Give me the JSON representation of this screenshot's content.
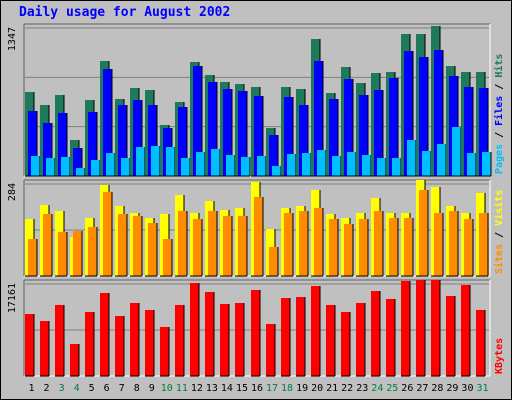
{
  "title": "Daily usage for August 2002",
  "colors": {
    "background": "#c0c0c0",
    "title": "#0000ff",
    "hits": "#1e7a5a",
    "files": "#0000ff",
    "pages": "#00bfff",
    "visits": "#ffff00",
    "sites": "#ff8c00",
    "kbytes": "#ff0000",
    "weekday_label": "#000000",
    "weekend_label": "#007f3f"
  },
  "chart_data": [
    {
      "type": "bar",
      "panel": "hits-files-pages",
      "y_max_label": "1347",
      "legend": [
        {
          "text": "Pages",
          "color": "#00bfff"
        },
        {
          "text": " / ",
          "color": "#000000"
        },
        {
          "text": "Files",
          "color": "#0000ff"
        },
        {
          "text": " / ",
          "color": "#000000"
        },
        {
          "text": "Hits",
          "color": "#1e7a5a"
        }
      ],
      "categories": [
        "1",
        "2",
        "3",
        "4",
        "5",
        "6",
        "7",
        "8",
        "9",
        "10",
        "11",
        "12",
        "13",
        "14",
        "15",
        "16",
        "17",
        "18",
        "19",
        "20",
        "21",
        "22",
        "23",
        "24",
        "25",
        "26",
        "27",
        "28",
        "29",
        "30",
        "31"
      ],
      "ylim": [
        0,
        1347
      ],
      "series": [
        {
          "name": "Hits",
          "values": [
            760,
            645,
            735,
            330,
            690,
            1050,
            705,
            800,
            780,
            465,
            675,
            1040,
            920,
            860,
            835,
            810,
            440,
            810,
            795,
            1245,
            755,
            990,
            850,
            935,
            945,
            1295,
            1290,
            1365,
            1005,
            945,
            945
          ]
        },
        {
          "name": "Files",
          "values": [
            595,
            480,
            575,
            255,
            580,
            975,
            645,
            695,
            645,
            440,
            625,
            1000,
            860,
            790,
            770,
            725,
            370,
            720,
            645,
            1045,
            705,
            885,
            740,
            780,
            895,
            1140,
            1080,
            1150,
            910,
            810,
            800
          ]
        },
        {
          "name": "Pages",
          "values": [
            185,
            165,
            170,
            70,
            145,
            205,
            165,
            265,
            270,
            260,
            165,
            215,
            245,
            195,
            175,
            180,
            95,
            200,
            205,
            235,
            180,
            215,
            190,
            165,
            165,
            325,
            230,
            290,
            445,
            205,
            215
          ]
        }
      ]
    },
    {
      "type": "bar",
      "panel": "visits-sites",
      "y_max_label": "284",
      "legend": [
        {
          "text": "Sites",
          "color": "#ff8c00"
        },
        {
          "text": " / ",
          "color": "#000000"
        },
        {
          "text": "Visits",
          "color": "#ffff00"
        }
      ],
      "categories": [
        "1",
        "2",
        "3",
        "4",
        "5",
        "6",
        "7",
        "8",
        "9",
        "10",
        "11",
        "12",
        "13",
        "14",
        "15",
        "16",
        "17",
        "18",
        "19",
        "20",
        "21",
        "22",
        "23",
        "24",
        "25",
        "26",
        "27",
        "28",
        "29",
        "30",
        "31"
      ],
      "ylim": [
        0,
        284
      ],
      "series": [
        {
          "name": "Visits",
          "values": [
            175,
            220,
            200,
            120,
            180,
            282,
            215,
            195,
            180,
            190,
            250,
            195,
            230,
            205,
            210,
            290,
            145,
            210,
            215,
            265,
            190,
            180,
            195,
            240,
            195,
            195,
            295,
            275,
            215,
            195,
            255
          ]
        },
        {
          "name": "Sites",
          "values": [
            115,
            190,
            135,
            140,
            150,
            260,
            190,
            185,
            165,
            115,
            200,
            175,
            200,
            185,
            185,
            245,
            90,
            195,
            200,
            210,
            175,
            160,
            175,
            200,
            180,
            180,
            265,
            195,
            200,
            175,
            195
          ]
        }
      ]
    },
    {
      "type": "bar",
      "panel": "kbytes",
      "y_max_label": "17161",
      "legend": [
        {
          "text": "KBytes",
          "color": "#ff0000"
        }
      ],
      "categories": [
        "1",
        "2",
        "3",
        "4",
        "5",
        "6",
        "7",
        "8",
        "9",
        "10",
        "11",
        "12",
        "13",
        "14",
        "15",
        "16",
        "17",
        "18",
        "19",
        "20",
        "21",
        "22",
        "23",
        "24",
        "25",
        "26",
        "27",
        "28",
        "29",
        "30",
        "31"
      ],
      "ylim": [
        0,
        17161
      ],
      "series": [
        {
          "name": "KBytes",
          "values": [
            11650,
            10200,
            13250,
            6000,
            11900,
            15500,
            11200,
            13550,
            12400,
            9150,
            13200,
            17300,
            15700,
            13400,
            13600,
            15950,
            9700,
            14500,
            14700,
            16700,
            13250,
            11900,
            13700,
            15800,
            14400,
            17800,
            17900,
            17900,
            14900,
            16900,
            12300
          ]
        }
      ]
    }
  ],
  "x_labels": [
    {
      "text": "1",
      "weekend": false
    },
    {
      "text": "2",
      "weekend": false
    },
    {
      "text": "3",
      "weekend": true
    },
    {
      "text": "4",
      "weekend": true
    },
    {
      "text": "5",
      "weekend": false
    },
    {
      "text": "6",
      "weekend": false
    },
    {
      "text": "7",
      "weekend": false
    },
    {
      "text": "8",
      "weekend": false
    },
    {
      "text": "9",
      "weekend": false
    },
    {
      "text": "10",
      "weekend": true
    },
    {
      "text": "11",
      "weekend": true
    },
    {
      "text": "12",
      "weekend": false
    },
    {
      "text": "13",
      "weekend": false
    },
    {
      "text": "14",
      "weekend": false
    },
    {
      "text": "15",
      "weekend": false
    },
    {
      "text": "16",
      "weekend": false
    },
    {
      "text": "17",
      "weekend": true
    },
    {
      "text": "18",
      "weekend": true
    },
    {
      "text": "19",
      "weekend": false
    },
    {
      "text": "20",
      "weekend": false
    },
    {
      "text": "21",
      "weekend": false
    },
    {
      "text": "22",
      "weekend": false
    },
    {
      "text": "23",
      "weekend": false
    },
    {
      "text": "24",
      "weekend": true
    },
    {
      "text": "25",
      "weekend": true
    },
    {
      "text": "26",
      "weekend": false
    },
    {
      "text": "27",
      "weekend": false
    },
    {
      "text": "28",
      "weekend": false
    },
    {
      "text": "29",
      "weekend": false
    },
    {
      "text": "30",
      "weekend": false
    },
    {
      "text": "31",
      "weekend": true
    }
  ]
}
